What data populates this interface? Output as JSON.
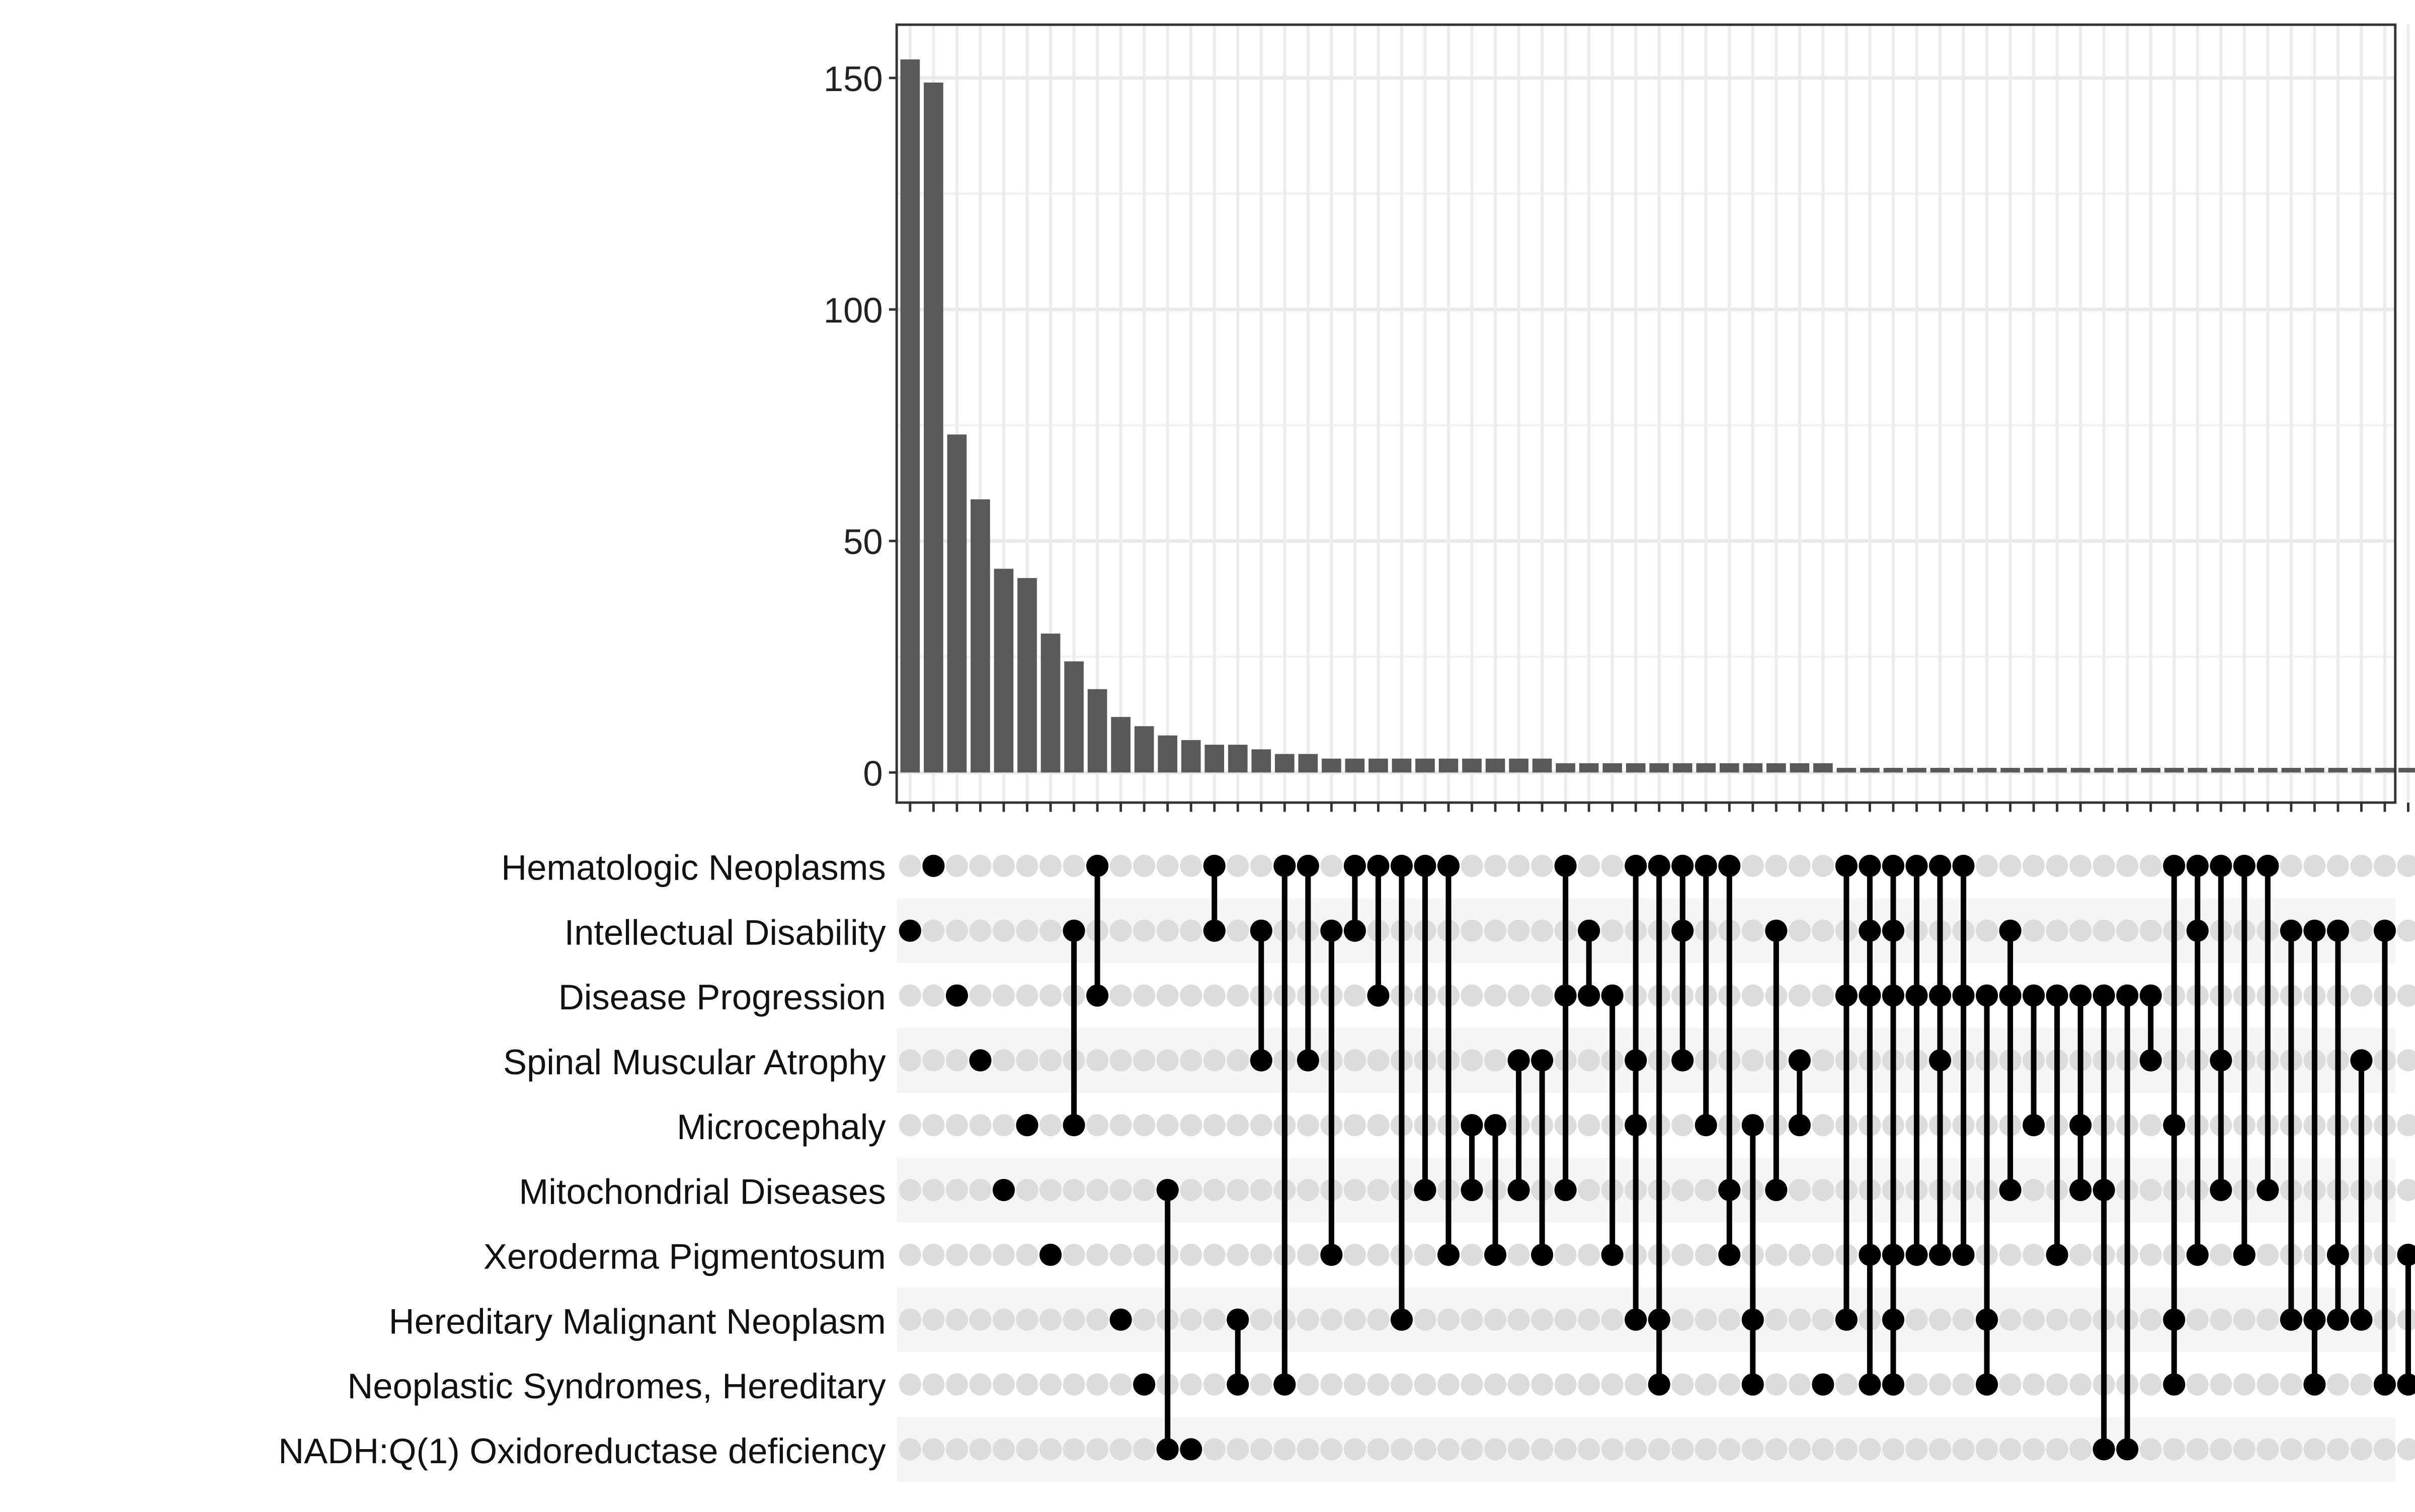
{
  "chart_data": {
    "type": "bar",
    "kind": "upset",
    "title": "",
    "xlabel": "",
    "ylabel": "",
    "ylim": [
      0,
      160
    ],
    "yticks": [
      0,
      50,
      100,
      150
    ],
    "grid": true,
    "sets": [
      "Hematologic Neoplasms",
      "Intellectual Disability",
      "Disease Progression",
      "Spinal Muscular Atrophy",
      "Microcephaly",
      "Mitochondrial Diseases",
      "Xeroderma Pigmentosum",
      "Hereditary Malignant Neoplasm",
      "Neoplastic Syndromes, Hereditary",
      "NADH:Q(1) Oxidoreductase deficiency"
    ],
    "intersections": [
      {
        "value": 154,
        "sets": [
          1
        ]
      },
      {
        "value": 149,
        "sets": [
          0
        ]
      },
      {
        "value": 73,
        "sets": [
          2
        ]
      },
      {
        "value": 59,
        "sets": [
          3
        ]
      },
      {
        "value": 44,
        "sets": [
          5
        ]
      },
      {
        "value": 42,
        "sets": [
          4
        ]
      },
      {
        "value": 30,
        "sets": [
          6
        ]
      },
      {
        "value": 24,
        "sets": [
          1,
          4
        ]
      },
      {
        "value": 18,
        "sets": [
          0,
          2
        ]
      },
      {
        "value": 12,
        "sets": [
          7
        ]
      },
      {
        "value": 10,
        "sets": [
          8
        ]
      },
      {
        "value": 8,
        "sets": [
          5,
          9
        ]
      },
      {
        "value": 7,
        "sets": [
          9
        ]
      },
      {
        "value": 6,
        "sets": [
          0,
          1
        ]
      },
      {
        "value": 6,
        "sets": [
          7,
          8
        ]
      },
      {
        "value": 5,
        "sets": [
          1,
          3
        ]
      },
      {
        "value": 4,
        "sets": [
          0,
          8
        ]
      },
      {
        "value": 4,
        "sets": [
          0,
          3
        ]
      },
      {
        "value": 3,
        "sets": [
          1,
          6
        ]
      },
      {
        "value": 3,
        "sets": [
          0,
          1
        ]
      },
      {
        "value": 3,
        "sets": [
          0,
          2
        ]
      },
      {
        "value": 3,
        "sets": [
          0,
          7
        ]
      },
      {
        "value": 3,
        "sets": [
          0,
          5
        ]
      },
      {
        "value": 3,
        "sets": [
          0,
          6
        ]
      },
      {
        "value": 3,
        "sets": [
          4,
          5
        ]
      },
      {
        "value": 3,
        "sets": [
          4,
          6
        ]
      },
      {
        "value": 3,
        "sets": [
          3,
          5
        ]
      },
      {
        "value": 3,
        "sets": [
          3,
          6
        ]
      },
      {
        "value": 2,
        "sets": [
          0,
          2,
          5
        ]
      },
      {
        "value": 2,
        "sets": [
          1,
          2
        ]
      },
      {
        "value": 2,
        "sets": [
          2,
          6
        ]
      },
      {
        "value": 2,
        "sets": [
          0,
          3,
          4,
          7
        ]
      },
      {
        "value": 2,
        "sets": [
          0,
          7,
          8
        ]
      },
      {
        "value": 2,
        "sets": [
          0,
          1,
          3
        ]
      },
      {
        "value": 2,
        "sets": [
          0,
          4
        ]
      },
      {
        "value": 2,
        "sets": [
          0,
          5,
          6
        ]
      },
      {
        "value": 2,
        "sets": [
          4,
          7,
          8
        ]
      },
      {
        "value": 2,
        "sets": [
          1,
          5
        ]
      },
      {
        "value": 2,
        "sets": [
          3,
          4
        ]
      },
      {
        "value": 2,
        "sets": [
          8
        ]
      },
      {
        "value": 1,
        "sets": [
          0,
          2,
          7
        ]
      },
      {
        "value": 1,
        "sets": [
          0,
          1,
          2,
          6,
          8
        ]
      },
      {
        "value": 1,
        "sets": [
          0,
          1,
          2,
          6,
          7,
          8
        ]
      },
      {
        "value": 1,
        "sets": [
          0,
          2,
          6
        ]
      },
      {
        "value": 1,
        "sets": [
          0,
          2,
          3,
          6
        ]
      },
      {
        "value": 1,
        "sets": [
          0,
          2,
          6
        ]
      },
      {
        "value": 1,
        "sets": [
          2,
          7,
          8
        ]
      },
      {
        "value": 1,
        "sets": [
          1,
          2,
          5
        ]
      },
      {
        "value": 1,
        "sets": [
          2,
          4
        ]
      },
      {
        "value": 1,
        "sets": [
          2,
          6
        ]
      },
      {
        "value": 1,
        "sets": [
          2,
          4,
          5
        ]
      },
      {
        "value": 1,
        "sets": [
          2,
          5,
          9
        ]
      },
      {
        "value": 1,
        "sets": [
          2,
          9
        ]
      },
      {
        "value": 1,
        "sets": [
          2,
          3
        ]
      },
      {
        "value": 1,
        "sets": [
          0,
          4,
          7,
          8
        ]
      },
      {
        "value": 1,
        "sets": [
          0,
          1,
          6
        ]
      },
      {
        "value": 1,
        "sets": [
          0,
          3,
          5
        ]
      },
      {
        "value": 1,
        "sets": [
          0,
          6
        ]
      },
      {
        "value": 1,
        "sets": [
          0,
          5
        ]
      },
      {
        "value": 1,
        "sets": [
          1,
          7
        ]
      },
      {
        "value": 1,
        "sets": [
          1,
          7,
          8
        ]
      },
      {
        "value": 1,
        "sets": [
          1,
          6,
          7
        ]
      },
      {
        "value": 1,
        "sets": [
          3,
          7
        ]
      },
      {
        "value": 1,
        "sets": [
          1,
          8
        ]
      },
      {
        "value": 1,
        "sets": [
          6,
          8
        ]
      }
    ]
  }
}
